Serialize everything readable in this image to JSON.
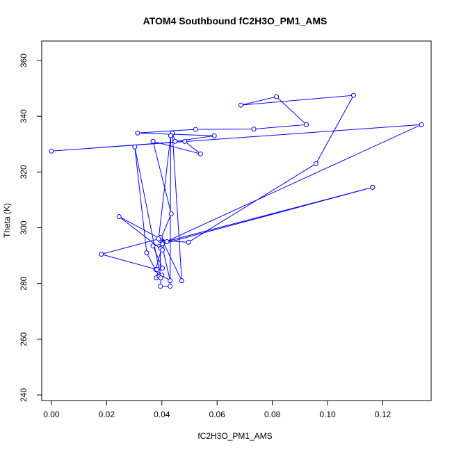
{
  "chart_data": {
    "type": "line",
    "title": "ATOM4 Southbound fC2H3O_PM1_AMS",
    "xlabel": "fC2H3O_PM1_AMS",
    "ylabel": "Theta (K)",
    "xlim": [
      -0.0035,
      0.1375
    ],
    "ylim": [
      238,
      367
    ],
    "x_ticks": [
      0.0,
      0.02,
      0.04,
      0.06,
      0.08,
      0.1,
      0.12
    ],
    "x_tick_labels": [
      "0.00",
      "0.02",
      "0.04",
      "0.06",
      "0.08",
      "0.10",
      "0.12"
    ],
    "y_ticks": [
      240,
      260,
      280,
      300,
      320,
      340,
      360
    ],
    "y_tick_labels": [
      "240",
      "260",
      "280",
      "300",
      "320",
      "340",
      "360"
    ],
    "grid": false,
    "line_color": "#0000ff",
    "marker": "open-circle",
    "series": [
      {
        "x": [
          0.1163,
          0.0405,
          0.0472,
          0.0438,
          0.0448,
          0.059,
          0.0312,
          0.0522,
          0.0733,
          0.0923,
          0.0815,
          0.0686,
          0.1094,
          0.0958,
          0.0496,
          0.0394,
          0.0434,
          0.0368,
          0.054,
          0.0483,
          0.0,
          0.134,
          0.0403,
          0.04,
          0.0378,
          0.0386,
          0.038,
          0.0392,
          0.0396,
          0.0402,
          0.0245,
          0.0395,
          0.0418,
          0.0394,
          0.043,
          0.04,
          0.039,
          0.0345,
          0.0302,
          0.0396,
          0.0395,
          0.043,
          0.0432,
          0.0388,
          0.0181,
          0.0382,
          0.0402,
          0.0368,
          0.0402,
          0.1163
        ],
        "y": [
          314.5,
          294.8,
          281.0,
          334.0,
          331.0,
          333.0,
          334.0,
          335.3,
          335.4,
          337.0,
          347.0,
          344.0,
          347.5,
          323.0,
          294.8,
          295.5,
          305.0,
          331.0,
          326.5,
          331.0,
          327.5,
          337.0,
          294.5,
          293.0,
          285.0,
          284.5,
          282.0,
          282.5,
          292.5,
          292.0,
          304.0,
          296.0,
          295.0,
          296.5,
          281.0,
          283.0,
          282.5,
          291.0,
          329.0,
          282.0,
          279.0,
          279.0,
          333.0,
          296.0,
          290.5,
          285.0,
          285.5,
          293.5,
          294.2,
          314.5
        ]
      }
    ]
  }
}
